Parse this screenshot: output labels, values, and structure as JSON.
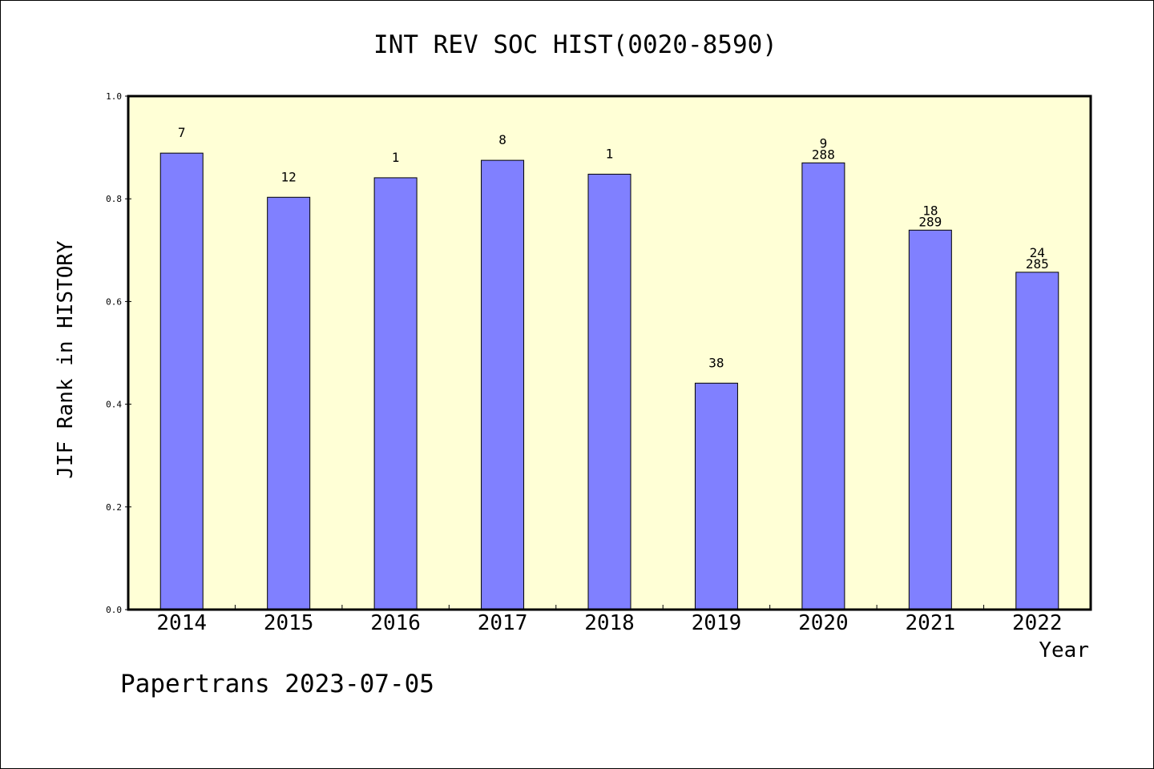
{
  "chart_data": {
    "type": "bar",
    "title": "INT REV SOC HIST(0020-8590)",
    "xlabel": "Year",
    "ylabel": "JIF Rank in HISTORY",
    "footer": "Papertrans 2023-07-05",
    "ylim": [
      0,
      1.0
    ],
    "yticks": [
      "0.0",
      "0.2",
      "0.4",
      "0.6",
      "0.8",
      "1.0"
    ],
    "categories": [
      "2014",
      "2015",
      "2016",
      "2017",
      "2018",
      "2019",
      "2020",
      "2021",
      "2022"
    ],
    "values": [
      0.889,
      0.803,
      0.841,
      0.875,
      0.848,
      0.441,
      0.87,
      0.739,
      0.657
    ],
    "rank_labels": [
      "7",
      "12",
      "1",
      "8",
      "1",
      "38",
      "9",
      "18",
      "24"
    ],
    "total_labels": [
      "",
      "",
      "",
      "",
      "",
      "",
      "288",
      "289",
      "285"
    ],
    "grid": false,
    "colors": {
      "plot_bg": "#ffffd6",
      "bar": "#8080ff"
    }
  }
}
